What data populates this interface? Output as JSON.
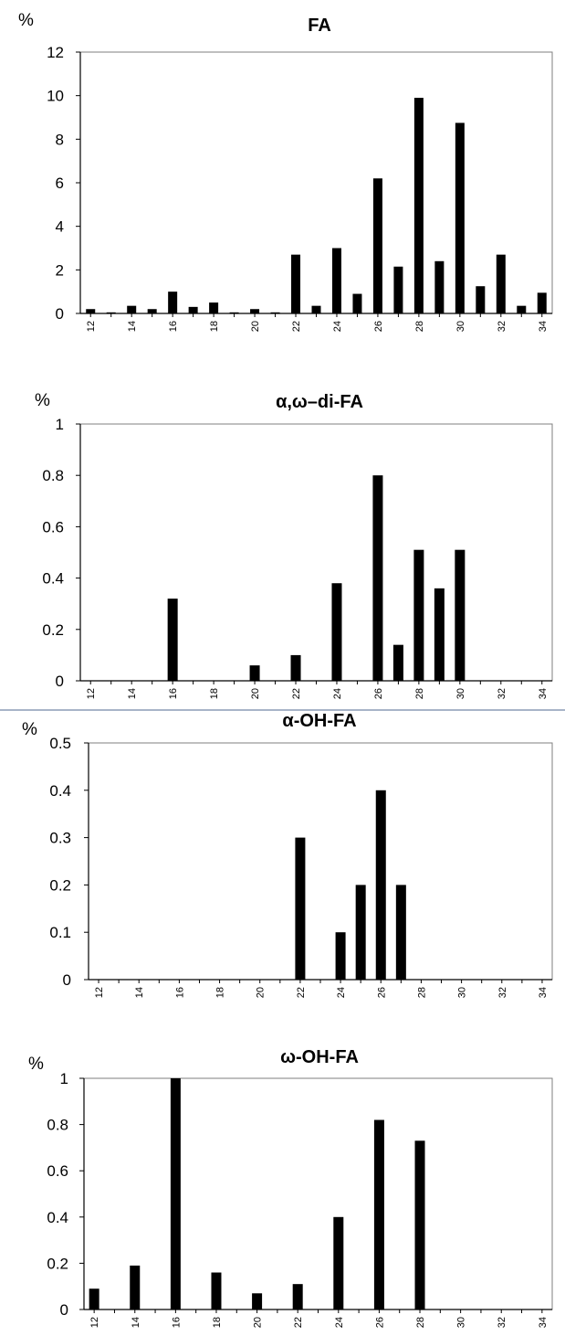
{
  "chart_data": [
    {
      "type": "bar",
      "title": "FA",
      "ylabel": "%",
      "ylim": [
        0,
        12
      ],
      "yticks": [
        "0",
        "2",
        "4",
        "6",
        "8",
        "10",
        "12"
      ],
      "xtick_labels": [
        "12",
        "14",
        "16",
        "18",
        "20",
        "22",
        "24",
        "26",
        "28",
        "30",
        "32",
        "34"
      ],
      "categories": [
        12,
        13,
        14,
        15,
        16,
        17,
        18,
        19,
        20,
        21,
        22,
        23,
        24,
        25,
        26,
        27,
        28,
        29,
        30,
        31,
        32,
        33,
        34
      ],
      "values": [
        0.2,
        0.05,
        0.35,
        0.2,
        1.0,
        0.3,
        0.5,
        0.05,
        0.2,
        0.05,
        2.7,
        0.35,
        3.0,
        0.9,
        6.2,
        2.15,
        9.9,
        2.4,
        8.75,
        1.25,
        2.7,
        0.35,
        0.95
      ],
      "color": "#000000",
      "grid": false
    },
    {
      "type": "bar",
      "title": "α,ω–di-FA",
      "ylabel": "%",
      "ylim": [
        0,
        1
      ],
      "yticks": [
        "0",
        "0.2",
        "0.4",
        "0.6",
        "0.8",
        "1"
      ],
      "xtick_labels": [
        "12",
        "14",
        "16",
        "18",
        "20",
        "22",
        "24",
        "26",
        "28",
        "30",
        "32",
        "34"
      ],
      "categories": [
        16,
        20,
        22,
        24,
        26,
        27,
        28,
        29,
        30
      ],
      "values": [
        0.32,
        0.06,
        0.1,
        0.38,
        0.8,
        0.14,
        0.51,
        0.36,
        0.51
      ],
      "color": "#000000",
      "grid": false
    },
    {
      "type": "bar",
      "title": "α-OH-FA",
      "ylabel": "%",
      "ylim": [
        0,
        0.5
      ],
      "yticks": [
        "0",
        "0.1",
        "0.2",
        "0.3",
        "0.4",
        "0.5"
      ],
      "xtick_labels": [
        "12",
        "14",
        "16",
        "18",
        "20",
        "22",
        "24",
        "26",
        "28",
        "30",
        "32",
        "34"
      ],
      "categories": [
        22,
        24,
        25,
        26,
        27
      ],
      "values": [
        0.3,
        0.1,
        0.2,
        0.4,
        0.2
      ],
      "color": "#000000",
      "grid": false
    },
    {
      "type": "bar",
      "title": "ω-OH-FA",
      "ylabel": "%",
      "ylim": [
        0,
        1
      ],
      "yticks": [
        "0",
        "0.2",
        "0.4",
        "0.6",
        "0.8",
        "1"
      ],
      "xtick_labels": [
        "12",
        "14",
        "16",
        "18",
        "20",
        "22",
        "24",
        "26",
        "28",
        "30",
        "32",
        "34"
      ],
      "categories": [
        12,
        14,
        16,
        18,
        20,
        22,
        24,
        26,
        28
      ],
      "values": [
        0.09,
        0.19,
        1.0,
        0.16,
        0.07,
        0.11,
        0.4,
        0.82,
        0.73
      ],
      "color": "#000000",
      "grid": false
    }
  ]
}
